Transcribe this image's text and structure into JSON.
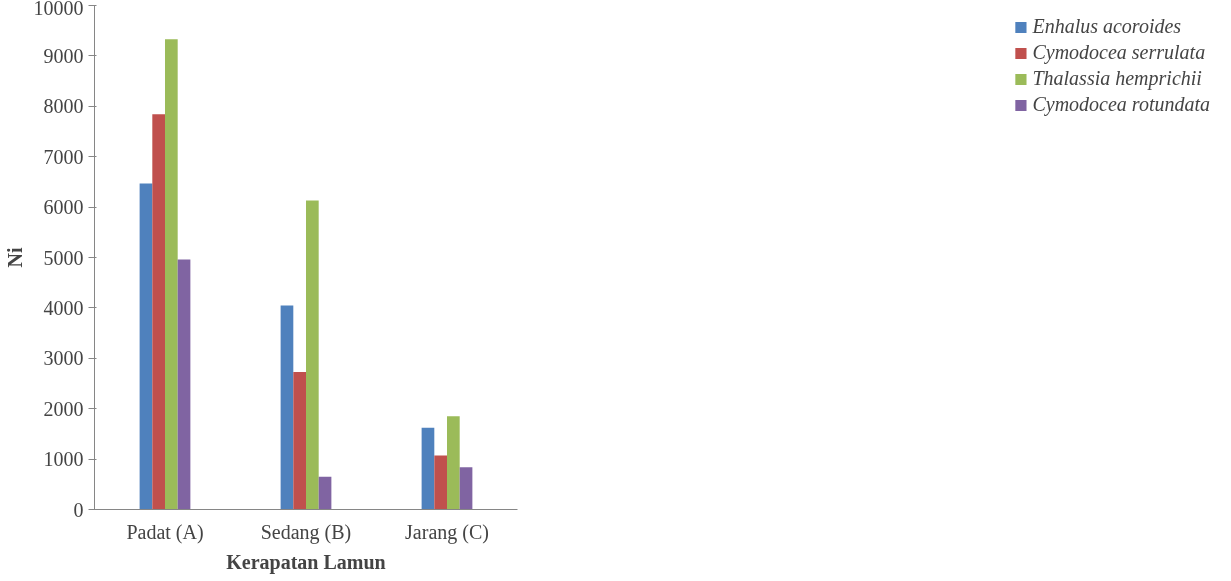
{
  "chart_data": {
    "type": "bar",
    "xlabel": "Kerapatan Lamun",
    "ylabel": "Ni",
    "categories": [
      "Padat (A)",
      "Sedang (B)",
      "Jarang (C)"
    ],
    "series": [
      {
        "name": "Enhalus acoroides",
        "color": "#4f81bd",
        "values": [
          6470,
          4050,
          1620
        ]
      },
      {
        "name": "Cymodocea serrulata",
        "color": "#c0504d",
        "values": [
          7840,
          2730,
          1070
        ]
      },
      {
        "name": "Thalassia hemprichii",
        "color": "#9bbb59",
        "values": [
          9330,
          6130,
          1850
        ]
      },
      {
        "name": "Cymodocea rotundata",
        "color": "#8064a2",
        "values": [
          4960,
          650,
          840
        ]
      }
    ],
    "ylim": [
      0,
      10000
    ],
    "yticks": [
      0,
      1000,
      2000,
      3000,
      4000,
      5000,
      6000,
      7000,
      8000,
      9000,
      10000
    ],
    "grid": false,
    "legend": "right"
  }
}
